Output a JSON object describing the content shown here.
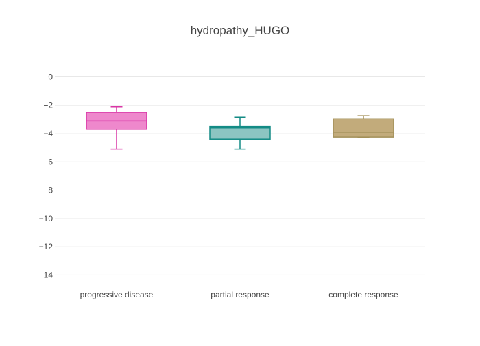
{
  "chart_data": {
    "type": "box",
    "title": "hydropathy_HUGO",
    "xlabel": "",
    "ylabel": "",
    "ylim": [
      -14.9,
      0.6
    ],
    "yticks": [
      0,
      -2,
      -4,
      -6,
      -8,
      -10,
      -12,
      -14
    ],
    "ytick_labels": [
      "0",
      "−2",
      "−4",
      "−6",
      "−8",
      "−10",
      "−12",
      "−14"
    ],
    "grid": true,
    "categories": [
      "progressive disease",
      "partial response",
      "complete response"
    ],
    "series": [
      {
        "category": "progressive disease",
        "min": -5.1,
        "q1": -3.7,
        "median": -3.1,
        "q3": -2.5,
        "max": -2.1,
        "line_color": "#d936a6",
        "fill_color": "#ee88cc"
      },
      {
        "category": "partial response",
        "min": -5.1,
        "q1": -4.4,
        "median": -3.6,
        "q3": -3.5,
        "max": -2.85,
        "line_color": "#138b85",
        "fill_color": "#8cc5c2"
      },
      {
        "category": "complete response",
        "min": -4.3,
        "q1": -4.25,
        "median": -3.9,
        "q3": -2.95,
        "max": -2.75,
        "line_color": "#a39059",
        "fill_color": "#c2ab7b"
      }
    ]
  }
}
